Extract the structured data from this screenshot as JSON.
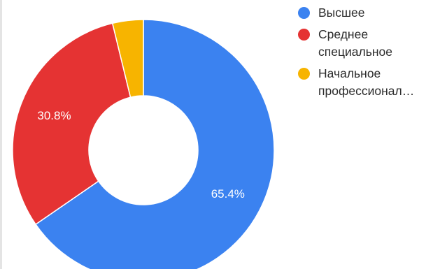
{
  "chart_data": {
    "type": "pie",
    "variant": "donut",
    "series": [
      {
        "name": "Высшее",
        "value": 65.4,
        "label": "65.4%",
        "color": "#3b82f0"
      },
      {
        "name": "Среднее\nспециальное",
        "value": 30.8,
        "label": "30.8%",
        "color": "#e53333"
      },
      {
        "name": "Начальное\nпрофессионал…",
        "value": 3.8,
        "label": "",
        "color": "#f7b400"
      }
    ],
    "start_angle_deg": 0,
    "direction": "clockwise",
    "legend_position": "right"
  }
}
